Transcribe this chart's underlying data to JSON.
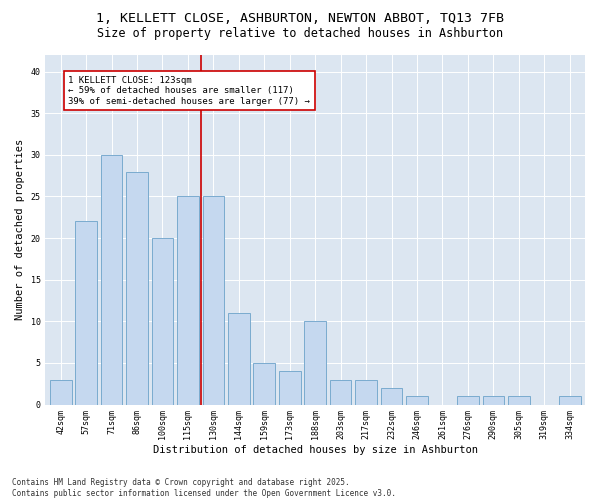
{
  "title_line1": "1, KELLETT CLOSE, ASHBURTON, NEWTON ABBOT, TQ13 7FB",
  "title_line2": "Size of property relative to detached houses in Ashburton",
  "xlabel": "Distribution of detached houses by size in Ashburton",
  "ylabel": "Number of detached properties",
  "categories": [
    "42sqm",
    "57sqm",
    "71sqm",
    "86sqm",
    "100sqm",
    "115sqm",
    "130sqm",
    "144sqm",
    "159sqm",
    "173sqm",
    "188sqm",
    "203sqm",
    "217sqm",
    "232sqm",
    "246sqm",
    "261sqm",
    "276sqm",
    "290sqm",
    "305sqm",
    "319sqm",
    "334sqm"
  ],
  "values": [
    3,
    22,
    30,
    28,
    20,
    25,
    25,
    11,
    5,
    4,
    10,
    3,
    3,
    2,
    1,
    0,
    1,
    1,
    1,
    0,
    1
  ],
  "bar_color": "#c5d8ef",
  "bar_edge_color": "#7aabcf",
  "vline_x": 5.5,
  "vline_color": "#cc0000",
  "annotation_text": "1 KELLETT CLOSE: 123sqm\n← 59% of detached houses are smaller (117)\n39% of semi-detached houses are larger (77) →",
  "annotation_box_color": "#ffffff",
  "annotation_box_edge": "#cc0000",
  "ylim": [
    0,
    42
  ],
  "yticks": [
    0,
    5,
    10,
    15,
    20,
    25,
    30,
    35,
    40
  ],
  "plot_background": "#dce6f1",
  "footer_text": "Contains HM Land Registry data © Crown copyright and database right 2025.\nContains public sector information licensed under the Open Government Licence v3.0.",
  "title_fontsize": 9.5,
  "subtitle_fontsize": 8.5,
  "axis_label_fontsize": 7.5,
  "tick_fontsize": 6,
  "annotation_fontsize": 6.5,
  "footer_fontsize": 5.5
}
